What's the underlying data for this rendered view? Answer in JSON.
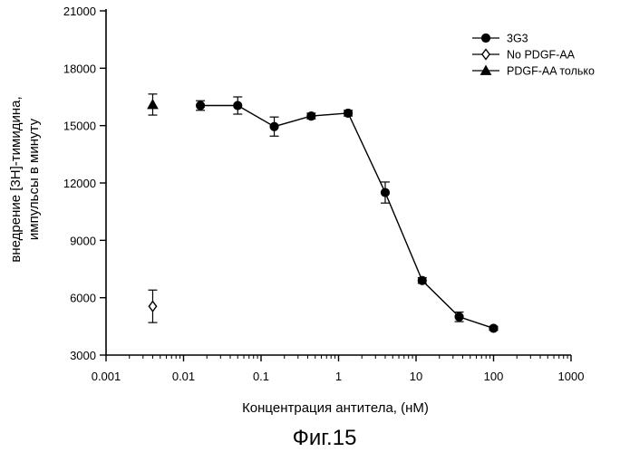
{
  "chart_data": {
    "type": "scatter",
    "xscale": "log",
    "xlim": [
      0.001,
      1000
    ],
    "ylim": [
      3000,
      21000
    ],
    "xlabel": "Концентрация антитела, (нМ)",
    "ylabel_lines": [
      "внедрение [3H]-тимидина,",
      "импульсы в минуту"
    ],
    "x_ticks": [
      "0.001",
      "0.01",
      "0.1",
      "1",
      "10",
      "100",
      "1000"
    ],
    "x_tick_values": [
      0.001,
      0.01,
      0.1,
      1,
      10,
      100,
      1000
    ],
    "y_ticks": [
      "3000",
      "6000",
      "9000",
      "12000",
      "15000",
      "18000",
      "21000"
    ],
    "y_tick_values": [
      3000,
      6000,
      9000,
      12000,
      15000,
      18000,
      21000
    ],
    "grid": false,
    "legend_position": "top-right",
    "series": [
      {
        "name": "3G3",
        "marker": "filled-circle",
        "connected": true,
        "x": [
          0.0165,
          0.05,
          0.148,
          0.444,
          1.33,
          4.0,
          12.0,
          36.0,
          100.0
        ],
        "y": [
          16050,
          16050,
          14950,
          15500,
          15650,
          11500,
          6900,
          5000,
          4400
        ],
        "err": [
          250,
          450,
          500,
          150,
          150,
          550,
          150,
          250,
          100
        ]
      },
      {
        "name": "No PDGF-AA",
        "marker": "open-diamond",
        "connected": false,
        "x": [
          0.004
        ],
        "y": [
          5550
        ],
        "err": [
          850
        ]
      },
      {
        "name": "PDGF-AA только",
        "marker": "filled-triangle",
        "connected": false,
        "x": [
          0.004
        ],
        "y": [
          16100
        ],
        "err": [
          550
        ]
      }
    ]
  },
  "caption": "Фиг.15"
}
